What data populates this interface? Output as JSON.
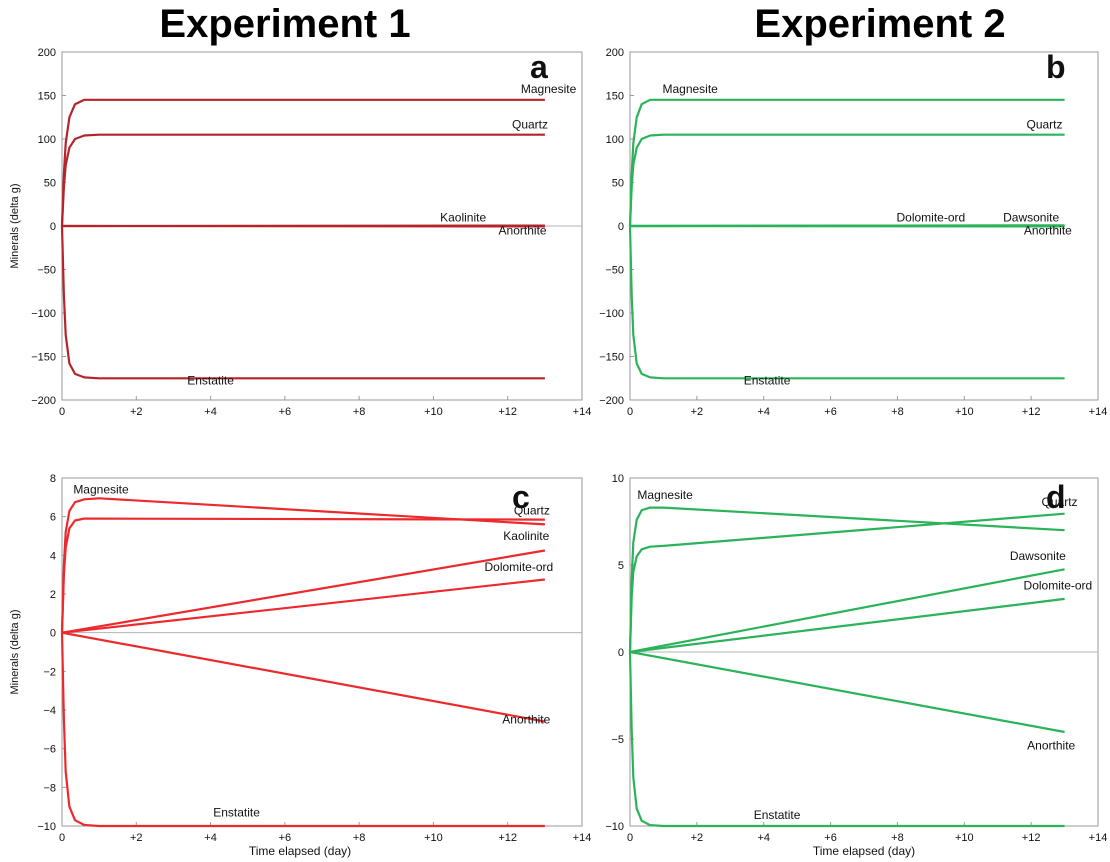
{
  "headers": [
    "Experiment 1",
    "Experiment 2"
  ],
  "chart_data": [
    {
      "type": "line",
      "panel_letter": "a",
      "ylabel": "Minerals (delta g)",
      "xlabel": "",
      "xlim": [
        0,
        14
      ],
      "ylim": [
        -200,
        200
      ],
      "xticks": [
        "0",
        "+2",
        "+4",
        "+6",
        "+8",
        "+10",
        "+12",
        "+14"
      ],
      "yticks": [
        "200",
        "150",
        "100",
        "50",
        "0",
        "−50",
        "−100",
        "−150",
        "−200"
      ],
      "line_color": "#b5242a",
      "zero_line": true,
      "series": [
        {
          "name": "Magnesite",
          "x": [
            0,
            0.05,
            0.1,
            0.2,
            0.35,
            0.6,
            1,
            13
          ],
          "y": [
            0,
            60,
            95,
            125,
            140,
            145,
            145,
            145
          ]
        },
        {
          "name": "Quartz",
          "x": [
            0,
            0.05,
            0.1,
            0.2,
            0.35,
            0.6,
            1,
            13
          ],
          "y": [
            0,
            45,
            70,
            90,
            100,
            104,
            105,
            105
          ]
        },
        {
          "name": "Kaolinite",
          "x": [
            0,
            13
          ],
          "y": [
            0,
            0.5
          ]
        },
        {
          "name": "Anorthite",
          "x": [
            0,
            13
          ],
          "y": [
            0,
            -0.5
          ]
        },
        {
          "name": "Enstatite",
          "x": [
            0,
            0.05,
            0.1,
            0.2,
            0.35,
            0.6,
            1,
            13
          ],
          "y": [
            0,
            -80,
            -125,
            -158,
            -170,
            -174,
            -175,
            -175
          ]
        }
      ],
      "labels": [
        {
          "text": "Magnesite",
          "x": 13.1,
          "y": 153
        },
        {
          "text": "Quartz",
          "x": 12.6,
          "y": 112
        },
        {
          "text": "Kaolinite",
          "x": 10.8,
          "y": 5
        },
        {
          "text": "Anorthite",
          "x": 12.4,
          "y": -10
        },
        {
          "text": "Enstatite",
          "x": 4.0,
          "y": -182
        }
      ]
    },
    {
      "type": "line",
      "panel_letter": "b",
      "ylabel": "",
      "xlabel": "",
      "xlim": [
        0,
        14
      ],
      "ylim": [
        -200,
        200
      ],
      "xticks": [
        "0",
        "+2",
        "+4",
        "+6",
        "+8",
        "+10",
        "+12",
        "+14"
      ],
      "yticks": [
        "200",
        "150",
        "100",
        "50",
        "0",
        "−50",
        "−100",
        "−150",
        "−200"
      ],
      "line_color": "#2bb35a",
      "zero_line": false,
      "series": [
        {
          "name": "Magnesite",
          "x": [
            0,
            0.05,
            0.1,
            0.2,
            0.35,
            0.6,
            1,
            13
          ],
          "y": [
            0,
            60,
            95,
            125,
            140,
            145,
            145,
            145
          ]
        },
        {
          "name": "Quartz",
          "x": [
            0,
            0.05,
            0.1,
            0.2,
            0.35,
            0.6,
            1,
            13
          ],
          "y": [
            0,
            45,
            70,
            90,
            100,
            104,
            105,
            105
          ]
        },
        {
          "name": "Dolomite-ord",
          "x": [
            0,
            13
          ],
          "y": [
            0,
            0.5
          ]
        },
        {
          "name": "Dawsonite",
          "x": [
            0,
            13
          ],
          "y": [
            0,
            0.8
          ]
        },
        {
          "name": "Anorthite",
          "x": [
            0,
            13
          ],
          "y": [
            0,
            -0.5
          ]
        },
        {
          "name": "Enstatite",
          "x": [
            0,
            0.05,
            0.1,
            0.2,
            0.35,
            0.6,
            1,
            13
          ],
          "y": [
            0,
            -80,
            -125,
            -158,
            -170,
            -174,
            -175,
            -175
          ]
        }
      ],
      "labels": [
        {
          "text": "Magnesite",
          "x": 1.8,
          "y": 153
        },
        {
          "text": "Quartz",
          "x": 12.4,
          "y": 112
        },
        {
          "text": "Dolomite-ord",
          "x": 9.0,
          "y": 5
        },
        {
          "text": "Dawsonite",
          "x": 12.0,
          "y": 5
        },
        {
          "text": "Anorthite",
          "x": 12.5,
          "y": -10
        },
        {
          "text": "Enstatite",
          "x": 4.1,
          "y": -182
        }
      ]
    },
    {
      "type": "line",
      "panel_letter": "c",
      "ylabel": "Minerals (delta g)",
      "xlabel": "Time elapsed (day)",
      "xlim": [
        0,
        14
      ],
      "ylim": [
        -10,
        8
      ],
      "xticks": [
        "0",
        "+2",
        "+4",
        "+6",
        "+8",
        "+10",
        "+12",
        "+14"
      ],
      "yticks": [
        "8",
        "6",
        "4",
        "2",
        "0",
        "−2",
        "−4",
        "−6",
        "−8",
        "−10"
      ],
      "line_color": "#ec2a2e",
      "zero_line": true,
      "series": [
        {
          "name": "Magnesite",
          "x": [
            0,
            0.05,
            0.1,
            0.2,
            0.35,
            0.6,
            1,
            13
          ],
          "y": [
            0,
            3.5,
            5.2,
            6.3,
            6.75,
            6.9,
            6.95,
            5.6
          ]
        },
        {
          "name": "Quartz",
          "x": [
            0,
            0.05,
            0.1,
            0.2,
            0.35,
            0.6,
            1,
            13
          ],
          "y": [
            0,
            3.0,
            4.4,
            5.4,
            5.8,
            5.9,
            5.9,
            5.85
          ]
        },
        {
          "name": "Kaolinite",
          "x": [
            0,
            13
          ],
          "y": [
            0,
            4.25
          ]
        },
        {
          "name": "Dolomite-ord",
          "x": [
            0,
            13
          ],
          "y": [
            0,
            2.75
          ]
        },
        {
          "name": "Anorthite",
          "x": [
            0,
            13
          ],
          "y": [
            0,
            -4.6
          ]
        },
        {
          "name": "Enstatite",
          "x": [
            0,
            0.05,
            0.1,
            0.2,
            0.35,
            0.6,
            1,
            13
          ],
          "y": [
            0,
            -4.5,
            -7.2,
            -9.0,
            -9.7,
            -9.95,
            -10,
            -10
          ]
        }
      ],
      "labels": [
        {
          "text": "Magnesite",
          "x": 1.05,
          "y": 7.2
        },
        {
          "text": "Quartz",
          "x": 12.65,
          "y": 6.1
        },
        {
          "text": "Kaolinite",
          "x": 12.5,
          "y": 4.8
        },
        {
          "text": "Dolomite-ord",
          "x": 12.3,
          "y": 3.2
        },
        {
          "text": "Anorthite",
          "x": 12.5,
          "y": -4.7
        },
        {
          "text": "Enstatite",
          "x": 4.7,
          "y": -9.5
        }
      ]
    },
    {
      "type": "line",
      "panel_letter": "d",
      "ylabel": "",
      "xlabel": "Time elapsed (day)",
      "xlim": [
        0,
        14
      ],
      "ylim": [
        -10,
        10
      ],
      "xticks": [
        "0",
        "+2",
        "+4",
        "+6",
        "+8",
        "+10",
        "+12",
        "+14"
      ],
      "yticks": [
        "10",
        "5",
        "0",
        "−5",
        "−10"
      ],
      "line_color": "#2bb35a",
      "zero_line": true,
      "series": [
        {
          "name": "Magnesite",
          "x": [
            0,
            0.05,
            0.1,
            0.2,
            0.35,
            0.6,
            1,
            13
          ],
          "y": [
            0,
            4.2,
            6.3,
            7.6,
            8.15,
            8.3,
            8.3,
            7.0
          ]
        },
        {
          "name": "Quartz",
          "x": [
            0,
            0.05,
            0.1,
            0.2,
            0.35,
            0.6,
            1,
            13
          ],
          "y": [
            0,
            3.2,
            4.6,
            5.5,
            5.9,
            6.05,
            6.1,
            7.95
          ]
        },
        {
          "name": "Dawsonite",
          "x": [
            0,
            13
          ],
          "y": [
            0,
            4.75
          ]
        },
        {
          "name": "Dolomite-ord",
          "x": [
            0,
            13
          ],
          "y": [
            0,
            3.05
          ]
        },
        {
          "name": "Anorthite",
          "x": [
            0,
            13
          ],
          "y": [
            0,
            -4.6
          ]
        },
        {
          "name": "Enstatite",
          "x": [
            0,
            0.05,
            0.1,
            0.2,
            0.35,
            0.6,
            1,
            13
          ],
          "y": [
            0,
            -4.5,
            -7.2,
            -9.0,
            -9.7,
            -9.95,
            -10,
            -10
          ]
        }
      ],
      "labels": [
        {
          "text": "Magnesite",
          "x": 1.05,
          "y": 8.8
        },
        {
          "text": "Quartz",
          "x": 12.85,
          "y": 8.4
        },
        {
          "text": "Dawsonite",
          "x": 12.2,
          "y": 5.3
        },
        {
          "text": "Dolomite-ord",
          "x": 12.8,
          "y": 3.6
        },
        {
          "text": "Anorthite",
          "x": 12.6,
          "y": -5.6
        },
        {
          "text": "Enstatite",
          "x": 4.4,
          "y": -9.6
        }
      ]
    }
  ]
}
